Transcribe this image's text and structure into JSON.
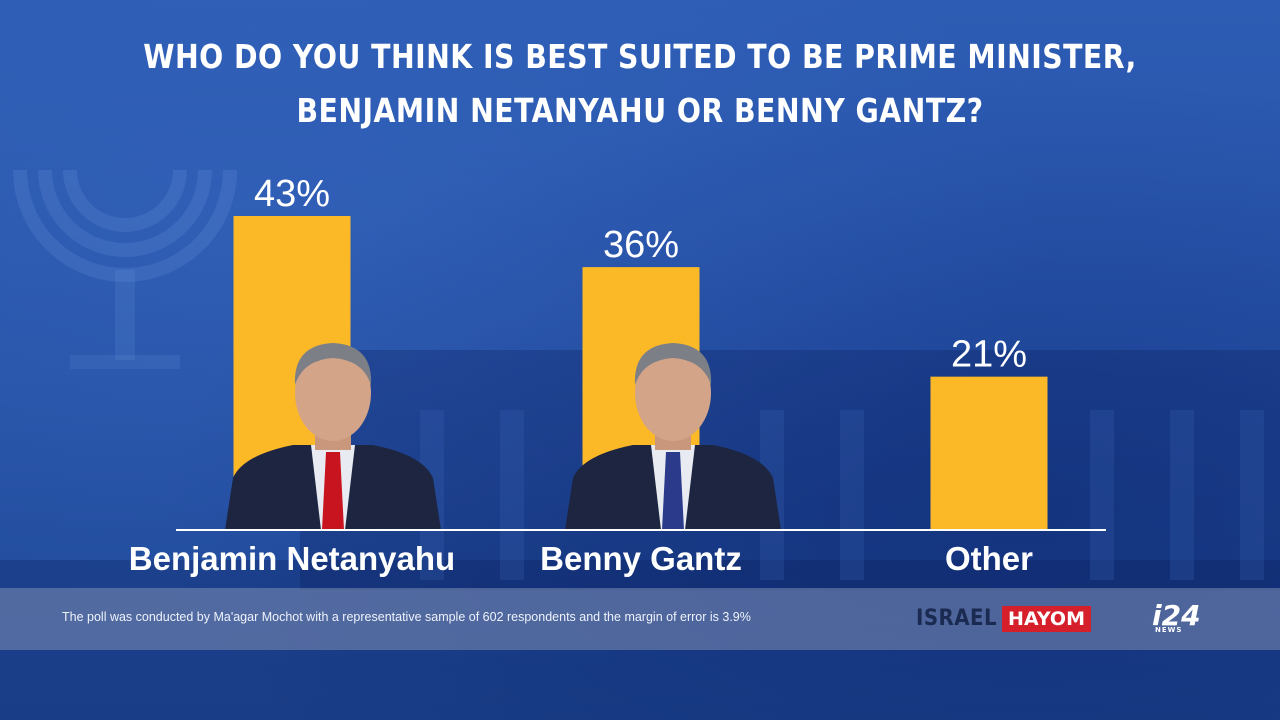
{
  "title": {
    "line1": "WHO DO YOU THINK IS BEST SUITED TO BE PRIME MINISTER,",
    "line2": "BENJAMIN NETANYAHU OR BENNY GANTZ?"
  },
  "chart_data": {
    "type": "bar",
    "title": "WHO DO YOU THINK IS BEST SUITED TO BE PRIME MINISTER, BENJAMIN NETANYAHU OR BENNY GANTZ?",
    "categories": [
      "Benjamin Netanyahu",
      "Benny Gantz",
      "Other"
    ],
    "values": [
      43,
      36,
      21
    ],
    "value_labels": [
      "43%",
      "36%",
      "21%"
    ],
    "ylim": [
      0,
      43
    ],
    "grid": false,
    "legend": "none",
    "bar_color": "#fbb928",
    "photos": [
      "netanyahu-photo",
      "gantz-photo"
    ]
  },
  "footer": {
    "note": "The poll was conducted by Ma'agar Mochot with a representative sample of 602 respondents and the margin of error is 3.9%"
  },
  "logos": {
    "israel_hayom": {
      "israel": "ISRAEL",
      "hayom": "HAYOM"
    },
    "i24": {
      "main": "i24",
      "sub": "NEWS"
    }
  },
  "colors": {
    "background": "#2a58ae",
    "bar": "#fbb928",
    "text": "#ffffff",
    "hayom_red": "#d51f2a"
  }
}
